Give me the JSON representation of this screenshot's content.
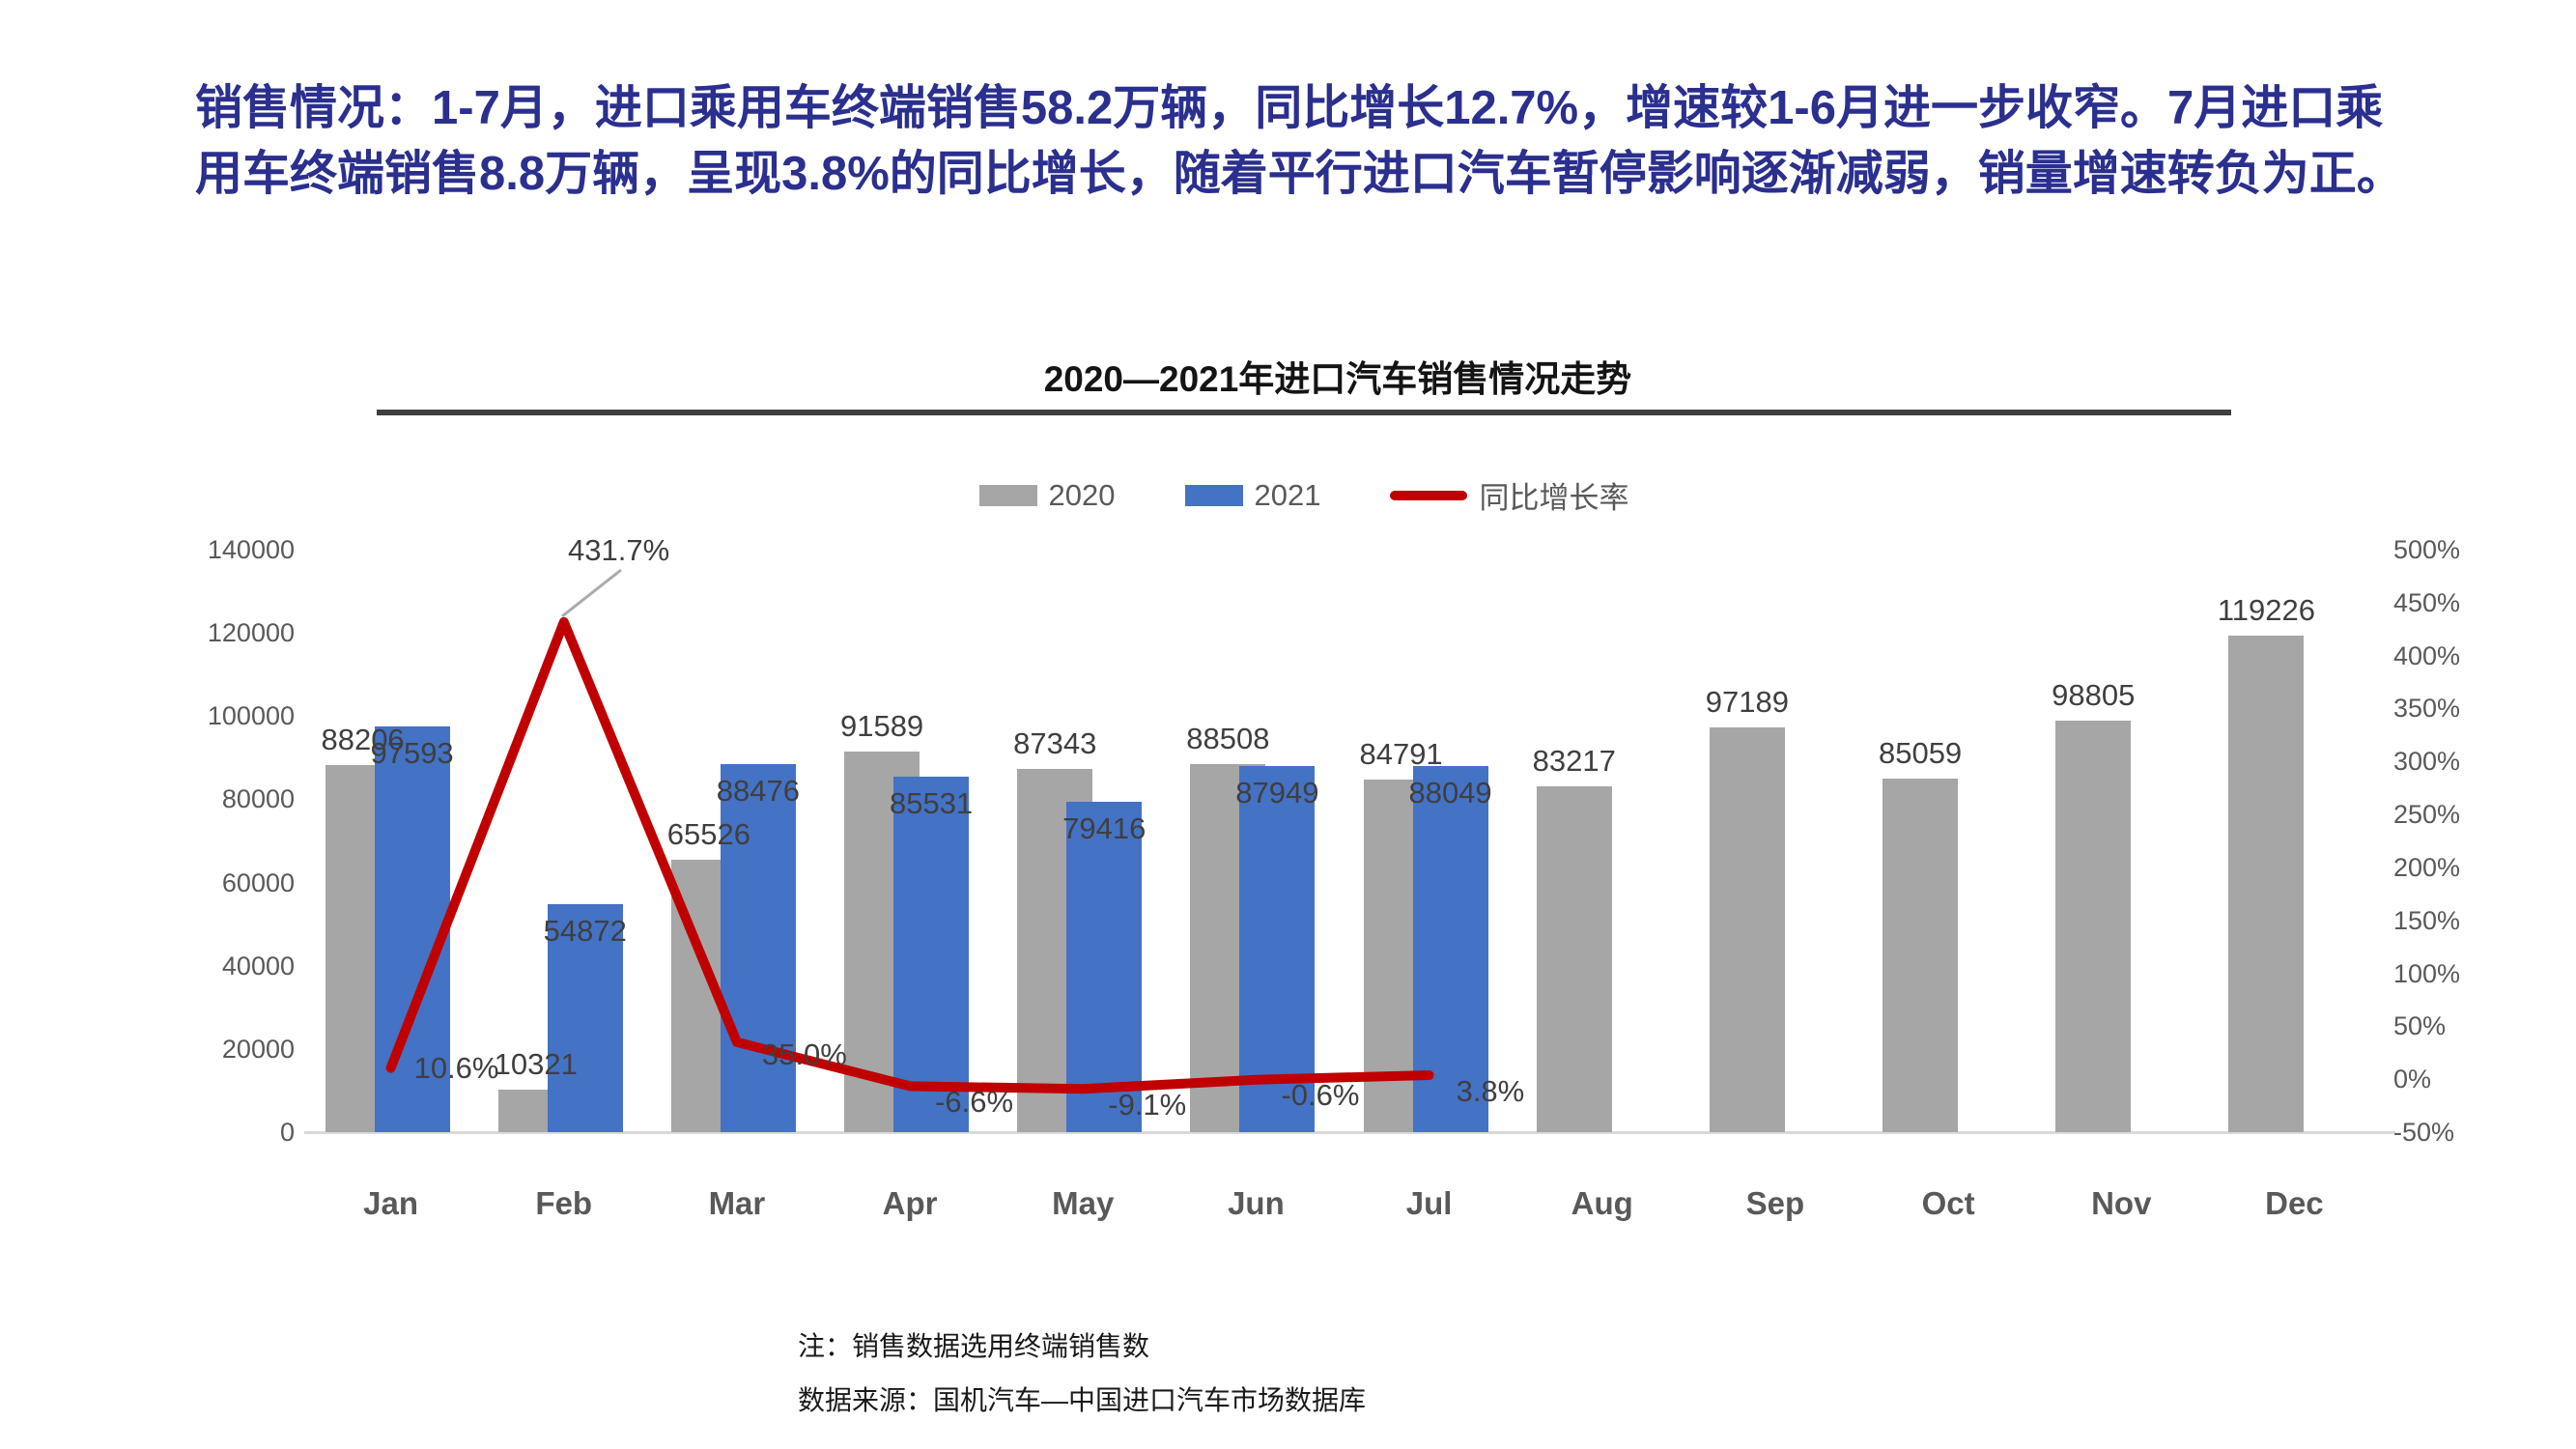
{
  "headline": "销售情况：1-7月，进口乘用车终端销售58.2万辆，同比增长12.7%，增速较1-6月进一步收窄。7月进口乘用车终端销售8.8万辆，呈现3.8%的同比增长，随着平行进口汽车暂停影响逐渐减弱，销量增速转负为正。",
  "chart": {
    "title": "2020—2021年进口汽车销售情况走势",
    "legend": [
      {
        "label": "2020",
        "type": "box",
        "color": "#a6a6a6"
      },
      {
        "label": "2021",
        "type": "box",
        "color": "#4472c4"
      },
      {
        "label": "同比增长率",
        "type": "line",
        "color": "#c00000"
      }
    ]
  },
  "chart_data": {
    "type": "combo",
    "categories": [
      "Jan",
      "Feb",
      "Mar",
      "Apr",
      "May",
      "Jun",
      "Jul",
      "Aug",
      "Sep",
      "Oct",
      "Nov",
      "Dec"
    ],
    "series": [
      {
        "name": "2020",
        "type": "bar",
        "color": "#a6a6a6",
        "values": [
          88206,
          10321,
          65526,
          91589,
          87343,
          88508,
          84791,
          83217,
          97189,
          85059,
          98805,
          119226
        ]
      },
      {
        "name": "2021",
        "type": "bar",
        "color": "#4472c4",
        "values": [
          97593,
          54872,
          88476,
          85531,
          79416,
          87949,
          88049,
          null,
          null,
          null,
          null,
          null
        ]
      },
      {
        "name": "同比增长率",
        "type": "line",
        "color": "#c00000",
        "axis": "right",
        "values": [
          10.6,
          431.7,
          35.0,
          -6.6,
          -9.1,
          -0.6,
          3.8
        ],
        "labels": [
          "10.6%",
          "431.7%",
          "35.0%",
          "-6.6%",
          "-9.1%",
          "-0.6%",
          "3.8%"
        ]
      }
    ],
    "left_axis": {
      "min": 0,
      "max": 140000,
      "step": 20000,
      "ticks": [
        "0",
        "20000",
        "40000",
        "60000",
        "80000",
        "100000",
        "120000",
        "140000"
      ]
    },
    "right_axis": {
      "min": -50,
      "max": 500,
      "step": 50,
      "ticks": [
        "-50%",
        "0%",
        "50%",
        "100%",
        "150%",
        "200%",
        "250%",
        "300%",
        "350%",
        "400%",
        "450%",
        "500%"
      ]
    },
    "grid": false,
    "legend_position": "top",
    "title": "2020—2021年进口汽车销售情况走势"
  },
  "notes": {
    "line1": "注：销售数据选用终端销售数",
    "line2": "数据来源：国机汽车—中国进口汽车市场数据库"
  },
  "colors": {
    "headline_text": "#2b2f8e",
    "bar_2020": "#a6a6a6",
    "bar_2021": "#4472c4",
    "growth_line": "#c00000",
    "leader_line": "#ababab",
    "axis_text": "#595959",
    "label_text": "#3f3f3f",
    "baseline": "#d9d9d9"
  }
}
